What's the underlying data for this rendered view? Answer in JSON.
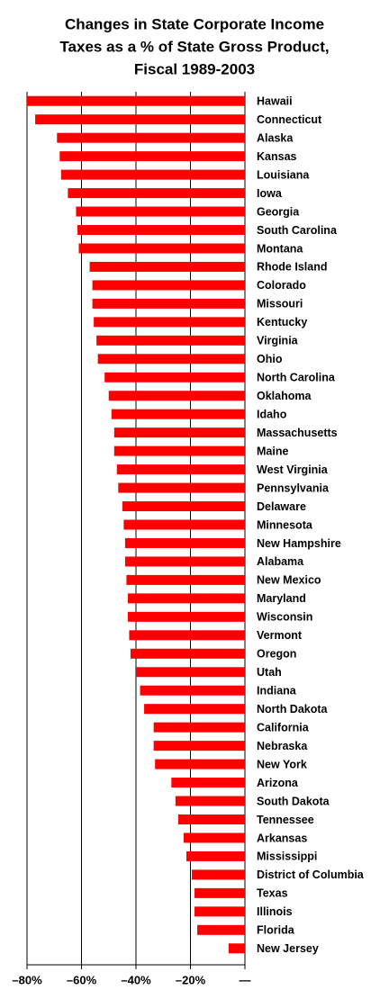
{
  "chart_data": {
    "type": "barh",
    "title": [
      "Changes in State Corporate Income",
      "Taxes as a % of State Gross Product,",
      "Fiscal 1989-2003"
    ],
    "categories": [
      "Hawaii",
      "Connecticut",
      "Alaska",
      "Kansas",
      "Louisiana",
      "Iowa",
      "Georgia",
      "South Carolina",
      "Montana",
      "Rhode Island",
      "Colorado",
      "Missouri",
      "Kentucky",
      "Virginia",
      "Ohio",
      "North Carolina",
      "Oklahoma",
      "Idaho",
      "Massachusetts",
      "Maine",
      "West Virginia",
      "Pennsylvania",
      "Delaware",
      "Minnesota",
      "New Hampshire",
      "Alabama",
      "New Mexico",
      "Maryland",
      "Wisconsin",
      "Vermont",
      "Oregon",
      "Utah",
      "Indiana",
      "North Dakota",
      "California",
      "Nebraska",
      "New York",
      "Arizona",
      "South Dakota",
      "Tennessee",
      "Arkansas",
      "Mississippi",
      "District of Columbia",
      "Texas",
      "Illinois",
      "Florida",
      "New Jersey"
    ],
    "values": [
      -80,
      -77,
      -69,
      -68,
      -67.5,
      -65,
      -62,
      -61.5,
      -61,
      -57,
      -56,
      -56,
      -55.5,
      -54.5,
      -54,
      -51.5,
      -50,
      -49,
      -48,
      -48,
      -47,
      -46.5,
      -45,
      -44.5,
      -44,
      -44,
      -43.5,
      -43,
      -43,
      -42.5,
      -42,
      -40,
      -38.5,
      -37,
      -33.5,
      -33.5,
      -33,
      -27,
      -25.5,
      -24.5,
      -22.5,
      -21.5,
      -19.5,
      -18.5,
      -18.5,
      -17.5,
      -6
    ],
    "color": "#ff0000",
    "xlim": [
      -80,
      0
    ],
    "xticks": [
      {
        "value": -80,
        "label": "–80%"
      },
      {
        "value": -60,
        "label": "–60%"
      },
      {
        "value": -40,
        "label": "–40%"
      },
      {
        "value": -20,
        "label": "–20%"
      },
      {
        "value": 0,
        "label": "—"
      }
    ],
    "grid": true
  }
}
